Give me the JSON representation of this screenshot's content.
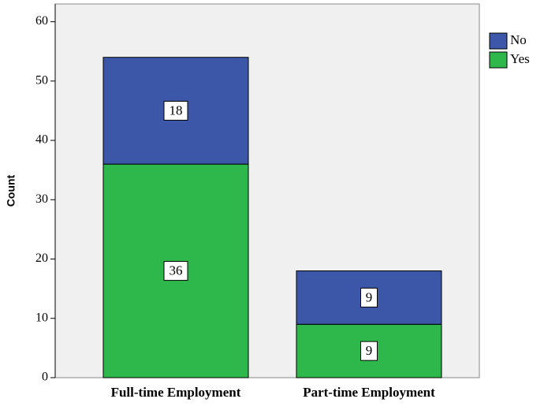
{
  "chart_data": {
    "type": "stacked_bar",
    "y_label": "Count",
    "categories": [
      "Full-time Employment",
      "Part-time Employment"
    ],
    "series": [
      {
        "name": "Yes",
        "color": "#2eb84c",
        "values": [
          36,
          9
        ]
      },
      {
        "name": "No",
        "color": "#3c56a8",
        "values": [
          18,
          9
        ]
      }
    ],
    "ylim": [
      0,
      63
    ],
    "yticks": [
      0,
      10,
      20,
      30,
      40,
      50,
      60
    ],
    "grid": false,
    "legend": "right"
  }
}
